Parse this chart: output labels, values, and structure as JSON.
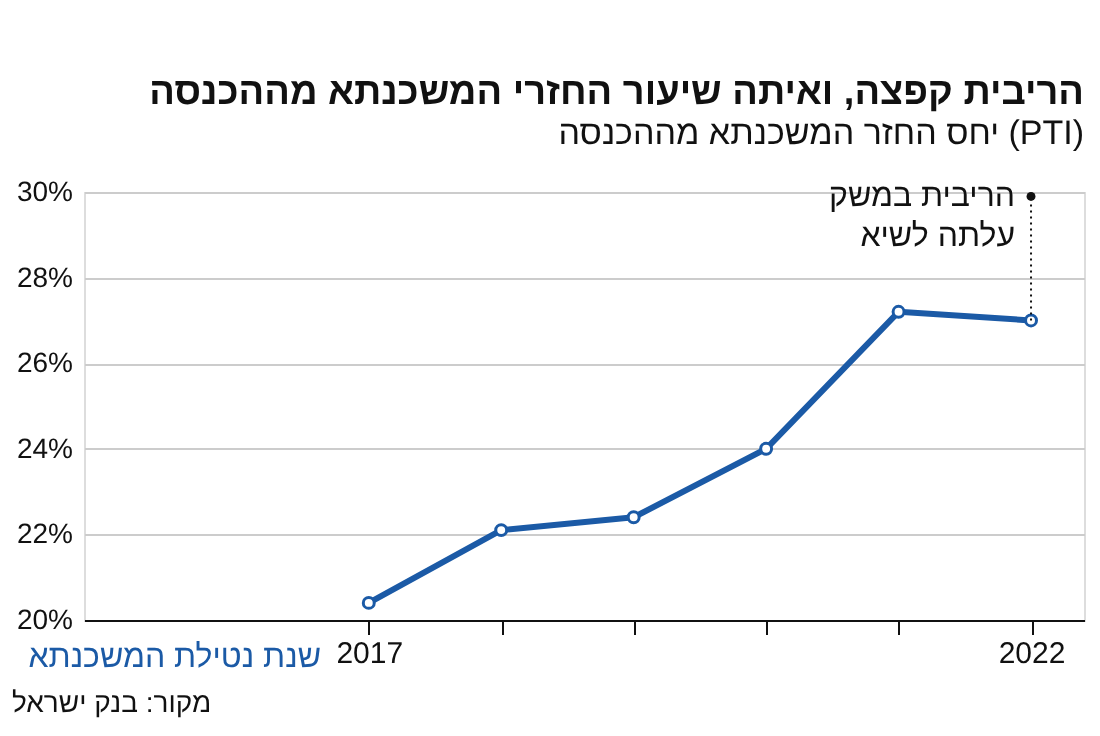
{
  "chart_data": {
    "type": "line",
    "title": "הריבית קפצה, ואיתה שיעור החזרי המשכנתא מההכנסה",
    "subtitle": "יחס החזר המשכנתא מההכנסה (PTI)",
    "xlabel": "שנת נטילת המשכנתא",
    "x": [
      2017,
      2018,
      2019,
      2020,
      2021,
      2022
    ],
    "series": [
      {
        "color": "#1b5aa6",
        "values": [
          20.4,
          22.1,
          22.4,
          24.0,
          27.2,
          27.0
        ]
      }
    ],
    "xlim": [
      2014.85,
      2022.4
    ],
    "xticks": [
      2017,
      {
        "value": 2018,
        "label": null
      },
      {
        "value": 2019,
        "label": null
      },
      {
        "value": 2020,
        "label": null
      },
      {
        "value": 2021,
        "label": null
      },
      2022
    ],
    "ylim": [
      20,
      30
    ],
    "yticks": [
      {
        "value": 20,
        "label": "20%"
      },
      {
        "value": 22,
        "label": "22%"
      },
      {
        "value": 24,
        "label": "24%"
      },
      {
        "value": 26,
        "label": "26%"
      },
      {
        "value": 28,
        "label": "28%"
      },
      {
        "value": 30,
        "label": "30%"
      }
    ],
    "grid": "y",
    "marker": "circle",
    "line_style": "solid",
    "annotations": [
      {
        "text": "הריבית במשק\nעלתה לשיא",
        "x": 2022,
        "y": 27
      },
      "מקור: בנק ישראל"
    ]
  }
}
